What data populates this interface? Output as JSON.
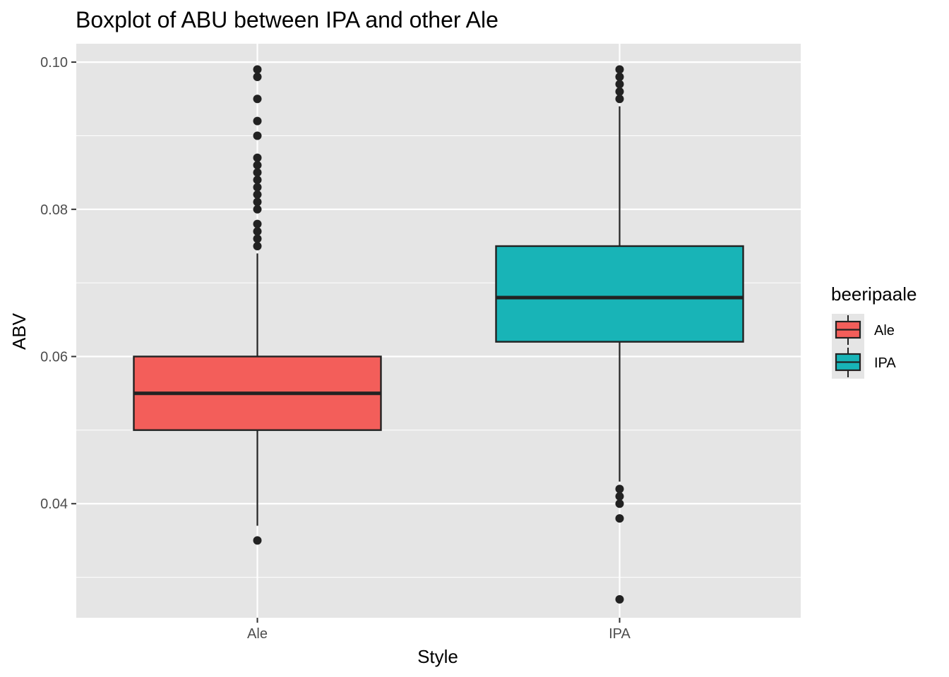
{
  "chart_data": {
    "type": "boxplot",
    "title": "Boxplot of ABU between IPA and other Ale",
    "xlabel": "Style",
    "ylabel": "ABV",
    "categories": [
      "Ale",
      "IPA"
    ],
    "ylim": [
      0.0245,
      0.1025
    ],
    "y_ticks": [
      0.04,
      0.06,
      0.08,
      0.1
    ],
    "y_tick_labels": [
      "0.04",
      "0.06",
      "0.08",
      "0.10"
    ],
    "y_minor_ticks": [
      0.03,
      0.05,
      0.07,
      0.09
    ],
    "grid": true,
    "legend": {
      "title": "beeripaale",
      "position": "right",
      "entries": [
        {
          "label": "Ale",
          "color": "#f35e5a"
        },
        {
          "label": "IPA",
          "color": "#18b4b7"
        }
      ]
    },
    "boxes": [
      {
        "category": "Ale",
        "color": "#f35e5a",
        "whisker_low": 0.037,
        "q1": 0.05,
        "median": 0.055,
        "q3": 0.06,
        "whisker_high": 0.074,
        "outliers": [
          0.035,
          0.075,
          0.076,
          0.077,
          0.078,
          0.08,
          0.081,
          0.082,
          0.083,
          0.084,
          0.085,
          0.086,
          0.087,
          0.09,
          0.092,
          0.095,
          0.098,
          0.099
        ]
      },
      {
        "category": "IPA",
        "color": "#18b4b7",
        "whisker_low": 0.043,
        "q1": 0.062,
        "median": 0.068,
        "q3": 0.075,
        "whisker_high": 0.094,
        "outliers": [
          0.027,
          0.038,
          0.04,
          0.041,
          0.042,
          0.095,
          0.096,
          0.097,
          0.098,
          0.099
        ]
      }
    ],
    "colors": {
      "panel_background": "#e5e5e5",
      "grid": "#ffffff",
      "box_outline": "#222222",
      "outlier": "#222222"
    }
  }
}
